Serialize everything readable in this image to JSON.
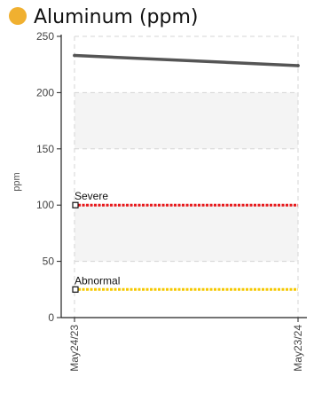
{
  "header": {
    "title": "Aluminum (ppm)",
    "marker_color": "#f0b030"
  },
  "chart_data": {
    "type": "line",
    "title": "Aluminum (ppm)",
    "ylabel": "ppm",
    "xlabel": "",
    "ylim": [
      0,
      250
    ],
    "yticks": [
      0,
      50,
      100,
      150,
      200,
      250
    ],
    "x": [
      "May24/23",
      "May23/24"
    ],
    "series": [
      {
        "values": [
          233,
          224
        ],
        "color": "#555555"
      }
    ],
    "thresholds": [
      {
        "label": "Severe",
        "value": 100,
        "color": "#e8191c"
      },
      {
        "label": "Abnormal",
        "value": 25,
        "color": "#f5c800"
      }
    ],
    "shaded_bands": [
      [
        50,
        100
      ],
      [
        150,
        200
      ]
    ],
    "grid": true
  }
}
